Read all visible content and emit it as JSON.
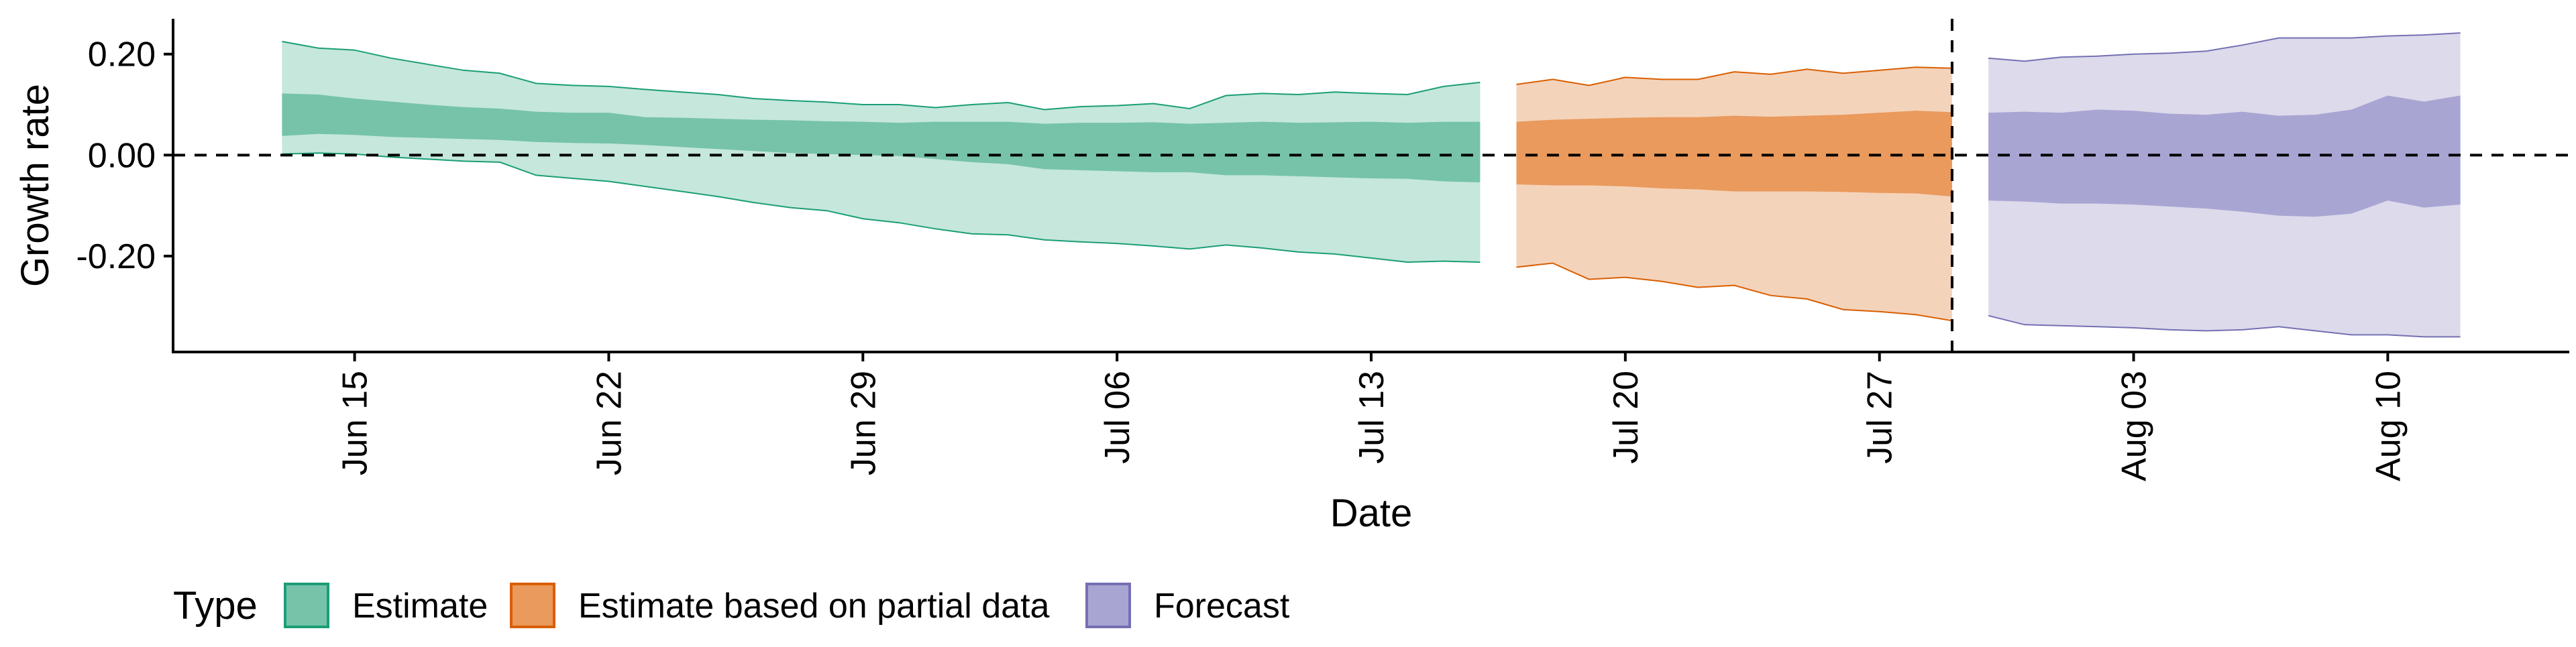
{
  "chart_data": {
    "type": "area",
    "xlabel": "Date",
    "ylabel": "Growth rate",
    "x_ticks": [
      "Jun 15",
      "Jun 22",
      "Jun 29",
      "Jul 06",
      "Jul 13",
      "Jul 20",
      "Jul 27",
      "Aug 03",
      "Aug 10"
    ],
    "x_tick_dates": [
      "2020-06-15",
      "2020-06-22",
      "2020-06-29",
      "2020-07-06",
      "2020-07-13",
      "2020-07-20",
      "2020-07-27",
      "2020-08-03",
      "2020-08-10"
    ],
    "y_ticks": [
      "0.20",
      "0.00",
      "-0.20"
    ],
    "y_tick_values": [
      0.2,
      0.0,
      -0.2
    ],
    "xlim": [
      "2020-06-10",
      "2020-08-15"
    ],
    "ylim": [
      -0.39,
      0.27
    ],
    "grid": false,
    "reference_lines": [
      {
        "orientation": "horizontal",
        "value": 0.0,
        "style": "dashed"
      },
      {
        "orientation": "vertical",
        "value": "2020-07-29",
        "style": "dashed"
      }
    ],
    "legend": {
      "title": "Type",
      "placement": "bottom",
      "entries": [
        {
          "label": "Estimate",
          "fill": "#76c3a9",
          "border": "#1b9e77"
        },
        {
          "label": "Estimate based on partial data",
          "fill": "#e99a5c",
          "border": "#d95f02"
        },
        {
          "label": "Forecast",
          "fill": "#a9a5d3",
          "border": "#7570b3"
        }
      ]
    },
    "series": [
      {
        "name": "Estimate",
        "outer_fill": "#c5e7dc",
        "inner_fill": "#76c3a9",
        "line_color": "#1b9e77",
        "dates": [
          "2020-06-13",
          "2020-06-14",
          "2020-06-15",
          "2020-06-16",
          "2020-06-17",
          "2020-06-18",
          "2020-06-19",
          "2020-06-20",
          "2020-06-21",
          "2020-06-22",
          "2020-06-23",
          "2020-06-24",
          "2020-06-25",
          "2020-06-26",
          "2020-06-27",
          "2020-06-28",
          "2020-06-29",
          "2020-06-30",
          "2020-07-01",
          "2020-07-02",
          "2020-07-03",
          "2020-07-04",
          "2020-07-05",
          "2020-07-06",
          "2020-07-07",
          "2020-07-08",
          "2020-07-09",
          "2020-07-10",
          "2020-07-11",
          "2020-07-12",
          "2020-07-13",
          "2020-07-14",
          "2020-07-15",
          "2020-07-16"
        ],
        "upper90": [
          0.225,
          0.212,
          0.208,
          0.192,
          0.18,
          0.168,
          0.162,
          0.142,
          0.138,
          0.136,
          0.13,
          0.125,
          0.12,
          0.112,
          0.108,
          0.105,
          0.1,
          0.1,
          0.094,
          0.1,
          0.104,
          0.09,
          0.096,
          0.098,
          0.102,
          0.092,
          0.118,
          0.122,
          0.12,
          0.125,
          0.122,
          0.12,
          0.136,
          0.144
        ],
        "upper50": [
          0.122,
          0.12,
          0.112,
          0.106,
          0.1,
          0.095,
          0.092,
          0.086,
          0.084,
          0.084,
          0.075,
          0.074,
          0.072,
          0.07,
          0.069,
          0.067,
          0.066,
          0.064,
          0.066,
          0.066,
          0.066,
          0.062,
          0.064,
          0.064,
          0.065,
          0.062,
          0.064,
          0.066,
          0.064,
          0.065,
          0.066,
          0.064,
          0.066,
          0.066
        ],
        "lower50": [
          0.038,
          0.042,
          0.04,
          0.036,
          0.034,
          0.032,
          0.03,
          0.026,
          0.024,
          0.023,
          0.02,
          0.016,
          0.012,
          0.008,
          0.004,
          0.002,
          0.0,
          -0.002,
          -0.008,
          -0.014,
          -0.018,
          -0.028,
          -0.03,
          -0.032,
          -0.034,
          -0.034,
          -0.04,
          -0.04,
          -0.042,
          -0.044,
          -0.046,
          -0.047,
          -0.052,
          -0.054
        ],
        "lower90": [
          0.002,
          0.004,
          0.002,
          -0.004,
          -0.008,
          -0.012,
          -0.014,
          -0.04,
          -0.046,
          -0.052,
          -0.062,
          -0.072,
          -0.082,
          -0.094,
          -0.104,
          -0.11,
          -0.126,
          -0.134,
          -0.146,
          -0.156,
          -0.158,
          -0.168,
          -0.172,
          -0.175,
          -0.18,
          -0.186,
          -0.178,
          -0.184,
          -0.192,
          -0.196,
          -0.204,
          -0.212,
          -0.21,
          -0.212
        ]
      },
      {
        "name": "Estimate based on partial data",
        "outer_fill": "#f4d3bb",
        "inner_fill": "#e99a5c",
        "line_color": "#d95f02",
        "dates": [
          "2020-07-17",
          "2020-07-18",
          "2020-07-19",
          "2020-07-20",
          "2020-07-21",
          "2020-07-22",
          "2020-07-23",
          "2020-07-24",
          "2020-07-25",
          "2020-07-26",
          "2020-07-27",
          "2020-07-28",
          "2020-07-29"
        ],
        "upper90": [
          0.14,
          0.15,
          0.138,
          0.154,
          0.15,
          0.15,
          0.165,
          0.16,
          0.17,
          0.162,
          0.168,
          0.174,
          0.172
        ],
        "upper50": [
          0.066,
          0.07,
          0.072,
          0.074,
          0.075,
          0.075,
          0.078,
          0.076,
          0.078,
          0.08,
          0.084,
          0.088,
          0.085
        ],
        "lower50": [
          -0.058,
          -0.06,
          -0.06,
          -0.062,
          -0.066,
          -0.068,
          -0.072,
          -0.072,
          -0.072,
          -0.073,
          -0.075,
          -0.076,
          -0.082
        ],
        "lower90": [
          -0.222,
          -0.214,
          -0.246,
          -0.242,
          -0.25,
          -0.262,
          -0.258,
          -0.278,
          -0.285,
          -0.306,
          -0.31,
          -0.316,
          -0.328
        ]
      },
      {
        "name": "Forecast",
        "outer_fill": "#dcdaeb",
        "inner_fill": "#a9a5d3",
        "line_color": "#7570b3",
        "dates": [
          "2020-07-30",
          "2020-07-31",
          "2020-08-01",
          "2020-08-02",
          "2020-08-03",
          "2020-08-04",
          "2020-08-05",
          "2020-08-06",
          "2020-08-07",
          "2020-08-08",
          "2020-08-09",
          "2020-08-10",
          "2020-08-11",
          "2020-08-12"
        ],
        "upper90": [
          0.192,
          0.186,
          0.194,
          0.196,
          0.2,
          0.202,
          0.206,
          0.218,
          0.232,
          0.232,
          0.232,
          0.236,
          0.238,
          0.242
        ],
        "upper50": [
          0.084,
          0.086,
          0.084,
          0.09,
          0.088,
          0.082,
          0.08,
          0.086,
          0.078,
          0.08,
          0.09,
          0.118,
          0.106,
          0.118
        ],
        "lower50": [
          -0.09,
          -0.092,
          -0.096,
          -0.096,
          -0.098,
          -0.102,
          -0.106,
          -0.112,
          -0.12,
          -0.122,
          -0.116,
          -0.09,
          -0.104,
          -0.098
        ],
        "lower90": [
          -0.318,
          -0.336,
          -0.338,
          -0.34,
          -0.342,
          -0.346,
          -0.348,
          -0.346,
          -0.34,
          -0.348,
          -0.356,
          -0.356,
          -0.36,
          -0.36
        ]
      }
    ]
  }
}
